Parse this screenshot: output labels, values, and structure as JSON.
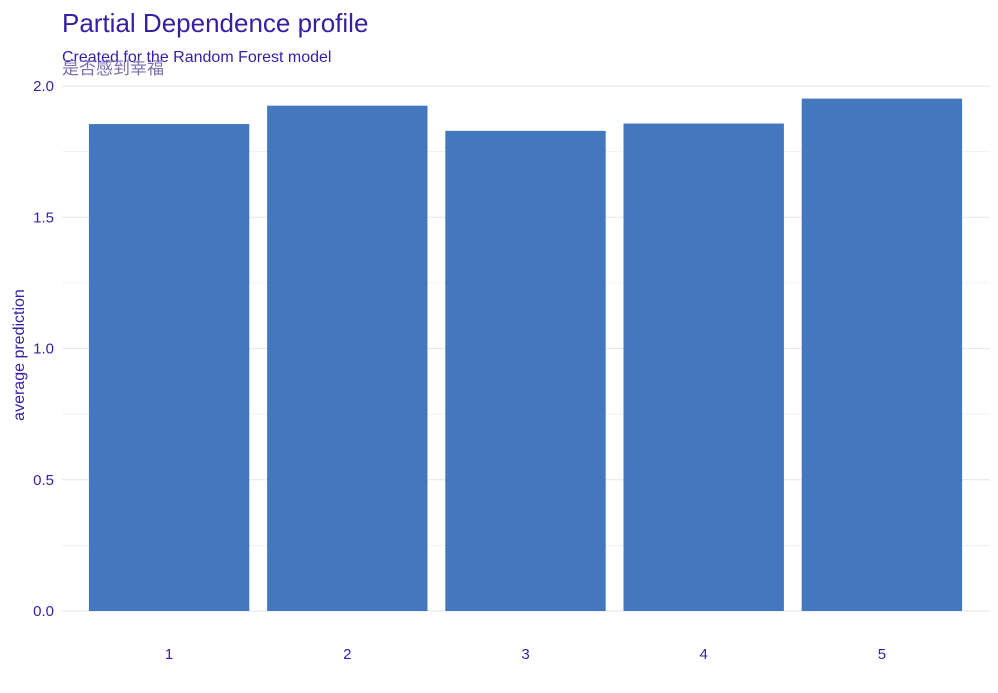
{
  "chart_data": {
    "type": "bar",
    "title": "Partial Dependence profile",
    "subtitle": "Created for the Random Forest model",
    "facet_label": "是否感到幸福",
    "xlabel": "",
    "ylabel": "average prediction",
    "categories": [
      "1",
      "2",
      "3",
      "4",
      "5"
    ],
    "values": [
      1.855,
      1.925,
      1.829,
      1.857,
      1.952
    ],
    "ylim": [
      0,
      2.0
    ],
    "yticks": [
      "0.0",
      "0.5",
      "1.0",
      "1.5",
      "2.0"
    ],
    "yticks_values": [
      0,
      0.5,
      1.0,
      1.5,
      2.0
    ],
    "grid": true,
    "bar_color": "#4378bf",
    "text_color": "#371ea3"
  }
}
